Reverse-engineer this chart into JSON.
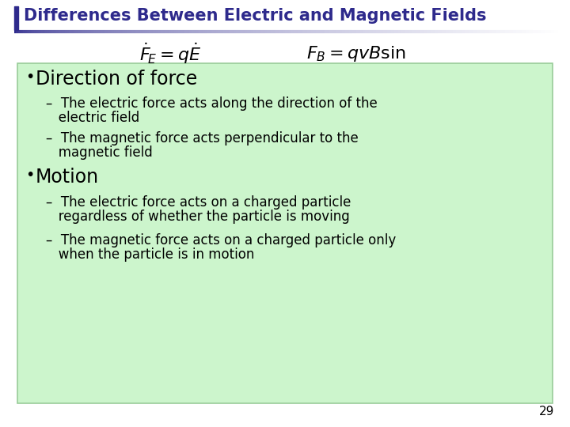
{
  "title": "Differences Between Electric and Magnetic Fields",
  "title_color": "#2E2A8C",
  "title_fontsize": 15,
  "background_color": "#ffffff",
  "box_color": "#ccf5cc",
  "box_edge_color": "#99cc99",
  "formula1": "$\\dot{F}_E = q\\dot{E}$",
  "formula2": "$F_B = qvB\\mathrm{sin}$",
  "formula_fontsize": 15,
  "bullet1_header": "Direction of force",
  "bullet1_sub1_line1": "–  The electric force acts along the direction of the",
  "bullet1_sub1_line2": "   electric field",
  "bullet1_sub2_line1": "–  The magnetic force acts perpendicular to the",
  "bullet1_sub2_line2": "   magnetic field",
  "bullet2_header": "Motion",
  "bullet2_sub1_line1": "–  The electric force acts on a charged particle",
  "bullet2_sub1_line2": "   regardless of whether the particle is moving",
  "bullet2_sub2_line1": "–  The magnetic force acts on a charged particle only",
  "bullet2_sub2_line2": "   when the particle is in motion",
  "page_number": "29",
  "header_bar_color": "#2E2A8C",
  "line_color": "#2E2A8C"
}
